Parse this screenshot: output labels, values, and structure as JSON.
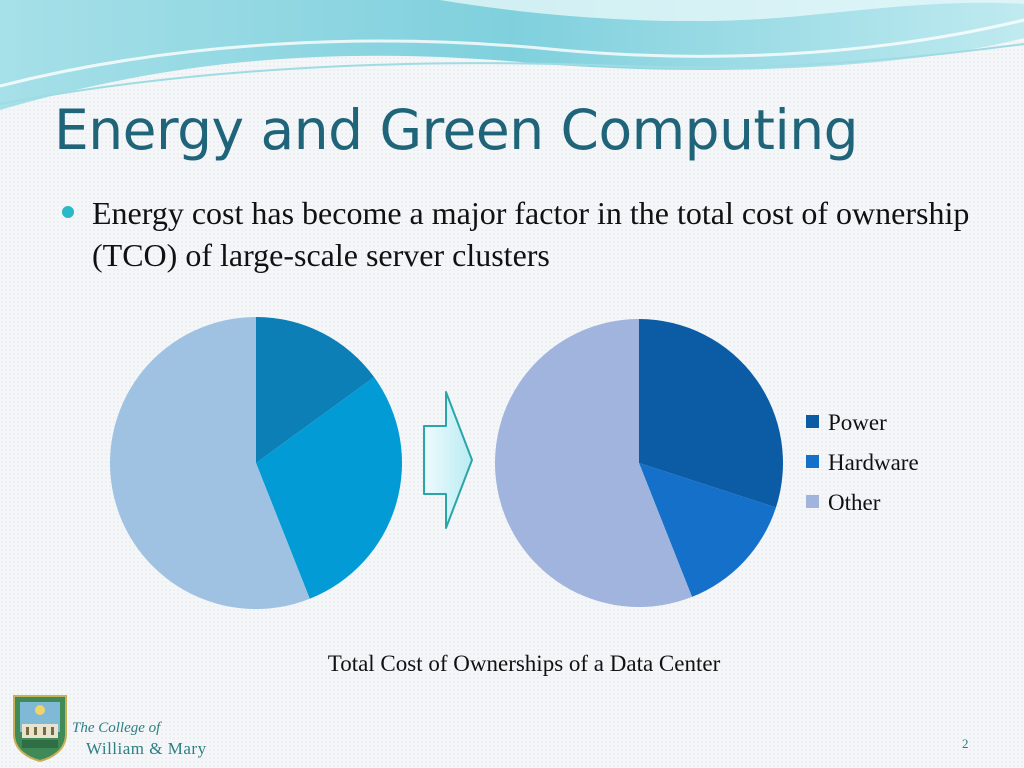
{
  "slide": {
    "title": "Energy and Green Computing",
    "bullets": [
      {
        "text": "Energy cost has become a major factor in the total cost of ownership (TCO) of large-scale server clusters"
      }
    ],
    "caption": "Total Cost of Ownerships of a Data Center",
    "footer": {
      "college_line": "The College of",
      "institution": "William & Mary",
      "slide_number": "2"
    },
    "icons": [
      "bullet-dot-icon",
      "right-arrow-icon",
      "college-seal-icon"
    ]
  },
  "colors": {
    "title": "#1f6479",
    "bullet": "#2ab9c6",
    "footer_text": "#2e7f83"
  },
  "chart_data": [
    {
      "type": "pie",
      "labels": [
        "Power",
        "Hardware",
        "Other"
      ],
      "values": [
        15,
        29,
        56
      ],
      "colors": [
        "#0b7fb6",
        "#039bd6",
        "#a0c2e2"
      ]
    },
    {
      "type": "pie",
      "labels": [
        "Power",
        "Hardware",
        "Other"
      ],
      "values": [
        30,
        14,
        56
      ],
      "colors": [
        "#0b5ca5",
        "#1470c9",
        "#a1b4de"
      ],
      "legend_position": "right"
    }
  ]
}
